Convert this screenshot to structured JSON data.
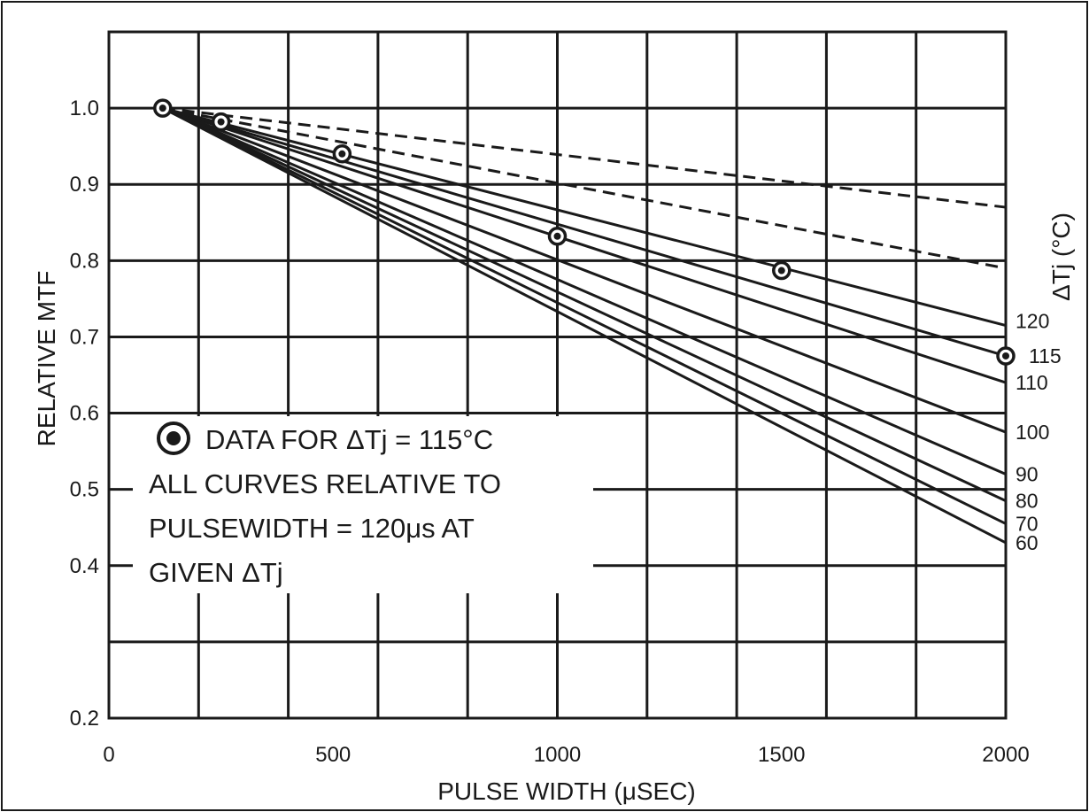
{
  "chart_data": {
    "type": "line",
    "title": "",
    "xlabel": "PULSE WIDTH (μSEC)",
    "ylabel": "RELATIVE MTF",
    "right_label": "ΔTj (°C)",
    "xlim": [
      0,
      2000
    ],
    "ylim": [
      0.2,
      1.1
    ],
    "grid": true,
    "xticks": [
      {
        "value": 0,
        "label": "0"
      },
      {
        "value": 500,
        "label": "500"
      },
      {
        "value": 1000,
        "label": "1000"
      },
      {
        "value": 1500,
        "label": "1500"
      },
      {
        "value": 2000,
        "label": "2000"
      }
    ],
    "yticks": [
      {
        "value": 0.2,
        "label": "0.2"
      },
      {
        "value": 0.4,
        "label": "0.4"
      },
      {
        "value": 0.5,
        "label": "0.5"
      },
      {
        "value": 0.6,
        "label": "0.6"
      },
      {
        "value": 0.7,
        "label": "0.7"
      },
      {
        "value": 0.8,
        "label": "0.8"
      },
      {
        "value": 0.9,
        "label": "0.9"
      },
      {
        "value": 1.0,
        "label": "1.0"
      }
    ],
    "series": [
      {
        "name": "60",
        "style": "solid",
        "x": [
          120,
          2000
        ],
        "y": [
          1.0,
          0.43
        ]
      },
      {
        "name": "70",
        "style": "solid",
        "x": [
          120,
          2000
        ],
        "y": [
          1.0,
          0.455
        ]
      },
      {
        "name": "80",
        "style": "solid",
        "x": [
          120,
          2000
        ],
        "y": [
          1.0,
          0.485
        ]
      },
      {
        "name": "90",
        "style": "solid",
        "x": [
          120,
          2000
        ],
        "y": [
          1.0,
          0.52
        ]
      },
      {
        "name": "100",
        "style": "solid",
        "x": [
          120,
          2000
        ],
        "y": [
          1.0,
          0.575
        ]
      },
      {
        "name": "110",
        "style": "solid",
        "x": [
          120,
          2000
        ],
        "y": [
          1.0,
          0.64
        ]
      },
      {
        "name": "115",
        "style": "solid",
        "x": [
          120,
          2000
        ],
        "y": [
          1.0,
          0.675
        ]
      },
      {
        "name": "120",
        "style": "solid",
        "x": [
          120,
          2000
        ],
        "y": [
          1.0,
          0.715
        ]
      },
      {
        "name": "",
        "style": "dashed",
        "x": [
          120,
          2000
        ],
        "y": [
          1.0,
          0.79
        ]
      },
      {
        "name": "",
        "style": "dashed",
        "x": [
          120,
          2000
        ],
        "y": [
          1.0,
          0.87
        ]
      }
    ],
    "data_points": {
      "name": "DATA FOR ΔTj = 115°C",
      "x": [
        120,
        250,
        520,
        1000,
        1500,
        2000
      ],
      "y": [
        1.0,
        0.982,
        0.94,
        0.832,
        0.787,
        0.675
      ]
    },
    "annotation": {
      "lines": [
        "DATA FOR ΔTj = 115°C",
        "ALL CURVES RELATIVE TO",
        "PULSEWIDTH = 120μs AT",
        "GIVEN ΔTj"
      ]
    }
  }
}
